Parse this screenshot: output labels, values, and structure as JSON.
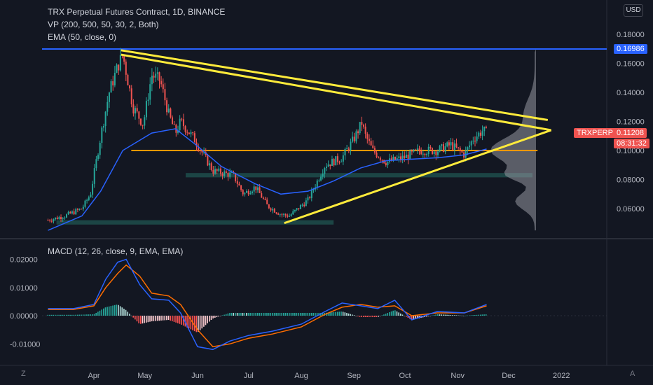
{
  "header": {
    "title": "TRX Perpetual Futures Contract, 1D, BINANCE",
    "vp_indicator": "VP (200, 500, 50, 30, 2, Both)",
    "ema_indicator": "EMA (50, close, 0)",
    "macd_indicator": "MACD (12, 26, close, 9, EMA, EMA)"
  },
  "currency_button": "USD",
  "corner_left": "Z",
  "corner_right": "A",
  "badges": {
    "hline_price": "0.16986",
    "symbol": "TRXPERP",
    "last_price": "0.11208",
    "countdown": "08:31:32"
  },
  "colors": {
    "background": "#131722",
    "up_candle": "#26a69a",
    "down_candle": "#ef5350",
    "ema": "#2962ff",
    "trendline": "#ffeb3b",
    "hline_blue": "#2962ff",
    "hline_orange": "#ff9800",
    "zone": "#1f4e4b",
    "macd_line": "#2962ff",
    "signal_line": "#ff6d00",
    "volume_profile": "#9598a1"
  },
  "chart_data": [
    {
      "type": "candlestick",
      "title": "TRX Perpetual Futures Contract, 1D, BINANCE",
      "x_ticks": [
        "Apr",
        "May",
        "Jun",
        "Jul",
        "Aug",
        "Sep",
        "Oct",
        "Nov",
        "Dec",
        "2022"
      ],
      "y_ticks": [
        "0.18000",
        "0.16000",
        "0.14000",
        "0.12000",
        "0.10000",
        "0.08000",
        "0.06000"
      ],
      "ylim": [
        0.042,
        0.19
      ],
      "price_path": {
        "dates": [
          "2021-03-05",
          "2021-03-15",
          "2021-03-25",
          "2021-03-30",
          "2021-04-05",
          "2021-04-10",
          "2021-04-15",
          "2021-04-18",
          "2021-04-24",
          "2021-04-30",
          "2021-05-05",
          "2021-05-10",
          "2021-05-15",
          "2021-05-19",
          "2021-05-22",
          "2021-05-30",
          "2021-06-10",
          "2021-06-22",
          "2021-06-28",
          "2021-07-05",
          "2021-07-12",
          "2021-07-20",
          "2021-07-25",
          "2021-08-05",
          "2021-08-15",
          "2021-08-25",
          "2021-09-01",
          "2021-09-06",
          "2021-09-07",
          "2021-09-12",
          "2021-09-20",
          "2021-09-30",
          "2021-10-10",
          "2021-10-20",
          "2021-10-28",
          "2021-11-05",
          "2021-11-10",
          "2021-11-16",
          "2021-11-18"
        ],
        "close": [
          0.052,
          0.055,
          0.06,
          0.07,
          0.11,
          0.14,
          0.158,
          0.166,
          0.13,
          0.118,
          0.152,
          0.148,
          0.125,
          0.112,
          0.12,
          0.108,
          0.086,
          0.083,
          0.07,
          0.075,
          0.062,
          0.056,
          0.055,
          0.066,
          0.09,
          0.095,
          0.108,
          0.12,
          0.112,
          0.1,
          0.092,
          0.095,
          0.1,
          0.1,
          0.104,
          0.097,
          0.108,
          0.114,
          0.112
        ]
      },
      "ema50": {
        "dates": [
          "2021-03-05",
          "2021-03-25",
          "2021-04-05",
          "2021-04-18",
          "2021-05-05",
          "2021-05-19",
          "2021-06-01",
          "2021-06-15",
          "2021-07-05",
          "2021-07-20",
          "2021-08-05",
          "2021-08-20",
          "2021-09-05",
          "2021-09-20",
          "2021-10-05",
          "2021-10-20",
          "2021-11-05",
          "2021-11-18"
        ],
        "values": [
          0.045,
          0.055,
          0.072,
          0.1,
          0.112,
          0.115,
          0.103,
          0.089,
          0.077,
          0.07,
          0.072,
          0.079,
          0.088,
          0.093,
          0.094,
          0.095,
          0.097,
          0.101
        ]
      },
      "horizontal_lines": [
        {
          "price": 0.16986,
          "color": "#2962ff"
        },
        {
          "price": 0.1,
          "color": "#ff9800",
          "from": "2021-04-23",
          "to": "2021-12-18"
        }
      ],
      "zones": [
        {
          "from": "2021-03-10",
          "to": "2021-08-20",
          "low": 0.049,
          "high": 0.052
        },
        {
          "from": "2021-05-25",
          "to": "2021-12-15",
          "low": 0.0815,
          "high": 0.0845
        }
      ],
      "trendlines": [
        {
          "x1": "2021-04-17",
          "y1": 0.169,
          "x2": "2021-12-24",
          "y2": 0.121
        },
        {
          "x1": "2021-04-17",
          "y1": 0.166,
          "x2": "2021-12-26",
          "y2": 0.114
        },
        {
          "x1": "2021-07-22",
          "y1": 0.05,
          "x2": "2021-12-26",
          "y2": 0.114
        }
      ]
    },
    {
      "type": "line",
      "title": "MACD (12, 26, close, 9, EMA, EMA)",
      "y_ticks": [
        "0.02000",
        "0.01000",
        "0.00000",
        "-0.01000"
      ],
      "ylim": [
        -0.017,
        0.024
      ],
      "dates": [
        "2021-03-05",
        "2021-03-20",
        "2021-04-01",
        "2021-04-08",
        "2021-04-15",
        "2021-04-20",
        "2021-04-28",
        "2021-05-05",
        "2021-05-15",
        "2021-05-22",
        "2021-06-01",
        "2021-06-10",
        "2021-06-20",
        "2021-07-01",
        "2021-07-15",
        "2021-08-01",
        "2021-08-15",
        "2021-08-25",
        "2021-09-05",
        "2021-09-15",
        "2021-09-25",
        "2021-10-05",
        "2021-10-20",
        "2021-11-05",
        "2021-11-18"
      ],
      "series": [
        {
          "name": "MACD",
          "values": [
            0.0025,
            0.0025,
            0.004,
            0.013,
            0.019,
            0.02,
            0.011,
            0.006,
            0.0055,
            0.001,
            -0.011,
            -0.012,
            -0.009,
            -0.007,
            -0.0055,
            -0.003,
            0.0015,
            0.0045,
            0.0035,
            0.0025,
            0.0055,
            -0.0015,
            0.0015,
            0.001,
            0.004
          ]
        },
        {
          "name": "Signal",
          "values": [
            0.0022,
            0.0022,
            0.0035,
            0.01,
            0.015,
            0.018,
            0.014,
            0.008,
            0.007,
            0.004,
            -0.005,
            -0.011,
            -0.01,
            -0.008,
            -0.0065,
            -0.004,
            0.0005,
            0.003,
            0.004,
            0.003,
            0.0035,
            0.0,
            0.001,
            0.001,
            0.0035
          ]
        }
      ]
    }
  ]
}
